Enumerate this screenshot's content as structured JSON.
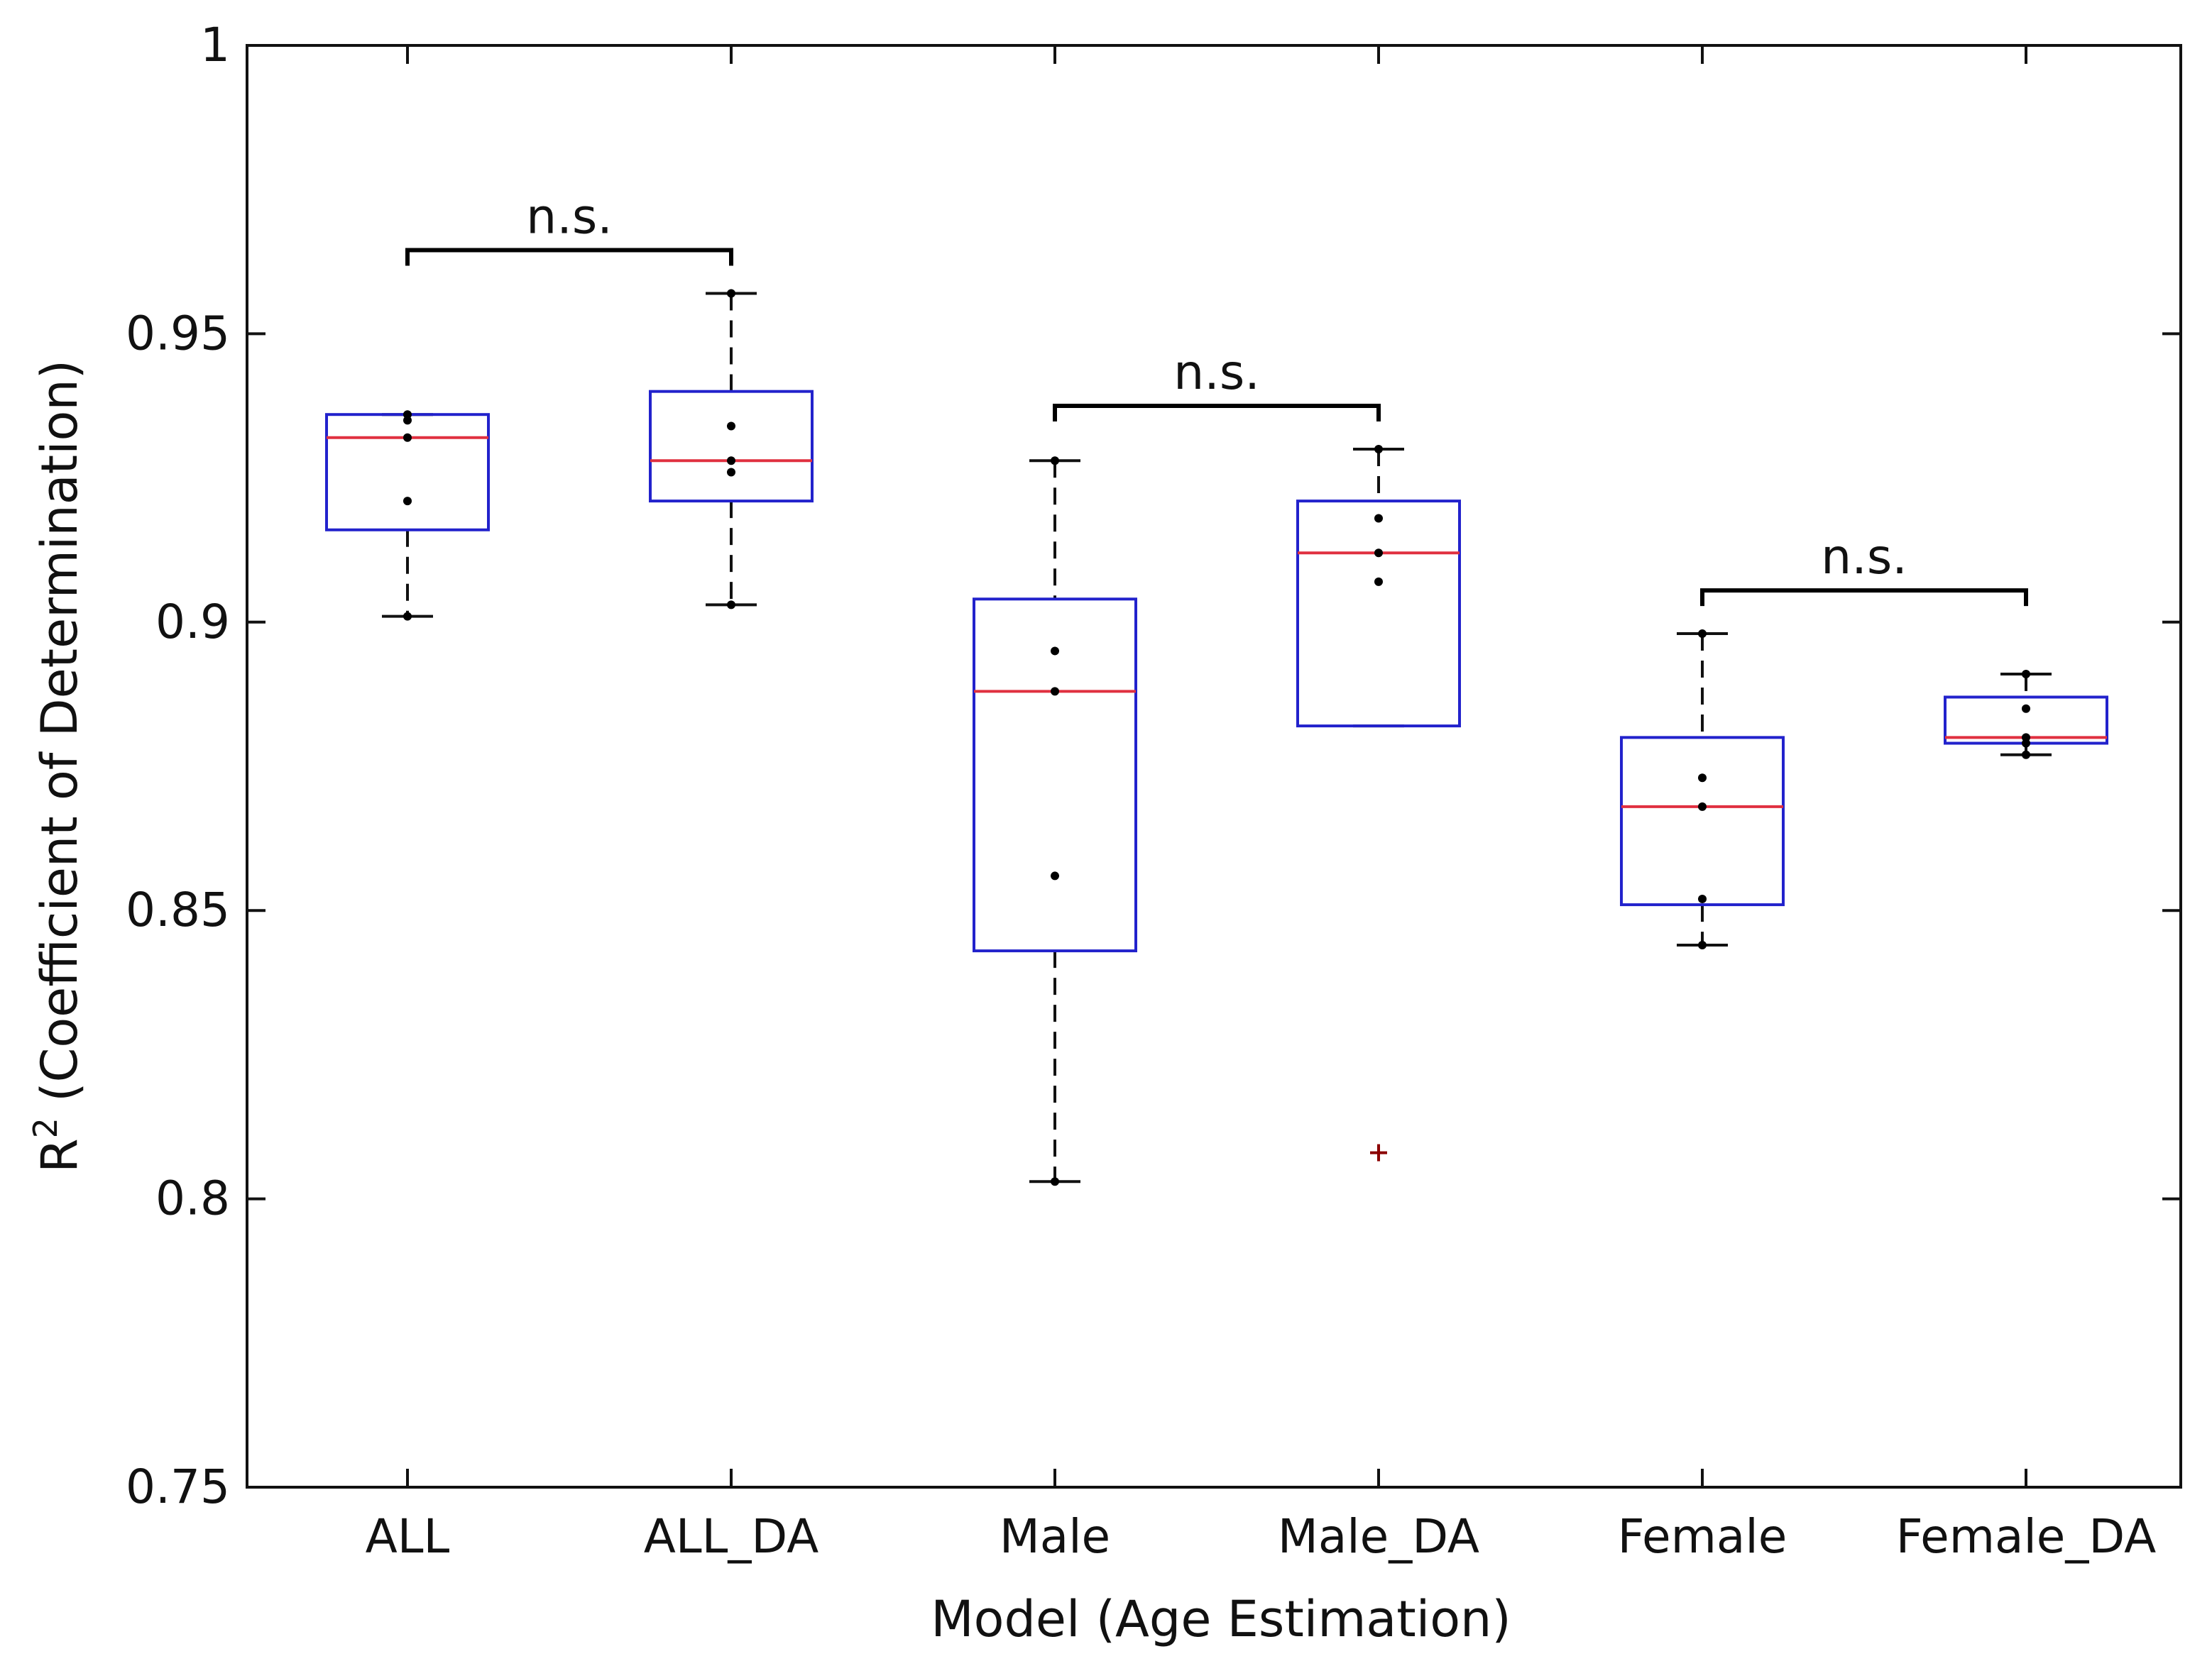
{
  "chart_data": {
    "type": "box",
    "title": "",
    "xlabel": "Model (Age Estimation)",
    "ylabel_base": "R",
    "ylabel_sup": "2",
    "ylabel_rest": " (Coefficient of Determination)",
    "ylim": [
      0.75,
      1.0
    ],
    "yticks": [
      0.75,
      0.8,
      0.85,
      0.9,
      0.95,
      1.0
    ],
    "ytick_labels": [
      "0.75",
      "0.8",
      "0.85",
      "0.9",
      "0.95",
      "1"
    ],
    "categories": [
      "ALL",
      "ALL_DA",
      "Male",
      "Male_DA",
      "Female",
      "Female_DA"
    ],
    "boxes": [
      {
        "name": "ALL",
        "q1": 0.916,
        "median": 0.932,
        "q3": 0.936,
        "whisker_low": 0.901,
        "whisker_high": 0.936,
        "points": [
          0.936,
          0.935,
          0.932,
          0.921,
          0.901
        ],
        "outliers": []
      },
      {
        "name": "ALL_DA",
        "q1": 0.921,
        "median": 0.928,
        "q3": 0.94,
        "whisker_low": 0.903,
        "whisker_high": 0.957,
        "points": [
          0.957,
          0.934,
          0.928,
          0.926,
          0.903
        ],
        "outliers": []
      },
      {
        "name": "Male",
        "q1": 0.843,
        "median": 0.888,
        "q3": 0.904,
        "whisker_low": 0.803,
        "whisker_high": 0.928,
        "points": [
          0.928,
          0.895,
          0.888,
          0.856,
          0.803
        ],
        "outliers": []
      },
      {
        "name": "Male_DA",
        "q1": 0.882,
        "median": 0.912,
        "q3": 0.921,
        "whisker_low": 0.882,
        "whisker_high": 0.93,
        "points": [
          0.93,
          0.918,
          0.912,
          0.907
        ],
        "outliers": [
          0.808
        ]
      },
      {
        "name": "Female",
        "q1": 0.851,
        "median": 0.868,
        "q3": 0.88,
        "whisker_low": 0.844,
        "whisker_high": 0.898,
        "points": [
          0.898,
          0.873,
          0.868,
          0.852,
          0.844
        ],
        "outliers": []
      },
      {
        "name": "Female_DA",
        "q1": 0.879,
        "median": 0.88,
        "q3": 0.887,
        "whisker_low": 0.877,
        "whisker_high": 0.891,
        "points": [
          0.891,
          0.885,
          0.88,
          0.879,
          0.877
        ],
        "outliers": []
      }
    ],
    "significance": [
      {
        "from": 0,
        "to": 1,
        "y": 0.9645,
        "label": "n.s."
      },
      {
        "from": 2,
        "to": 3,
        "y": 0.9375,
        "label": "n.s."
      },
      {
        "from": 4,
        "to": 5,
        "y": 0.9055,
        "label": "n.s."
      }
    ],
    "colors": {
      "box": "#2222cc",
      "median": "#e03040",
      "whisker": "#111111",
      "point": "#000000",
      "outlier": "#8b0000",
      "axis": "#111111",
      "bracket": "#000000"
    }
  }
}
